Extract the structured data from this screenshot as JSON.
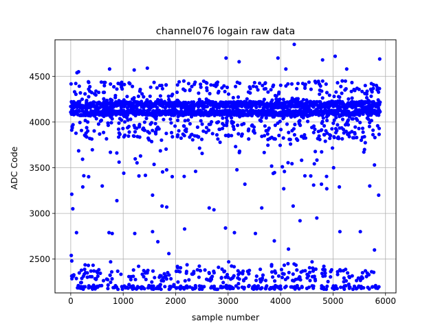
{
  "chart_data": {
    "type": "scatter",
    "title": "channel076 logain raw data",
    "xlabel": "sample number",
    "ylabel": "ADC Code",
    "xlim": [
      -300,
      6200
    ],
    "ylim": [
      2130,
      4900
    ],
    "xticks": [
      0,
      1000,
      2000,
      3000,
      4000,
      5000,
      6000
    ],
    "xtick_labels": [
      "0",
      "1000",
      "2000",
      "3000",
      "4000",
      "5000",
      "6000"
    ],
    "yticks": [
      2500,
      3000,
      3500,
      4000,
      4500
    ],
    "ytick_labels": [
      "2500",
      "3000",
      "3500",
      "4000",
      "4500"
    ],
    "grid": true,
    "marker_color": "#0000ff",
    "x_range": [
      0,
      5900
    ],
    "series": [
      {
        "name": "",
        "approx_point_count": 5900,
        "dense_bands": [
          {
            "y_center": 4190,
            "y_spread": 35
          },
          {
            "y_center": 4100,
            "y_spread": 30
          }
        ],
        "low_cluster": {
          "y_min": 2170,
          "y_max": 2450
        },
        "sample_points": [
          [
            120,
            4540
          ],
          [
            150,
            4550
          ],
          [
            740,
            4580
          ],
          [
            1210,
            4570
          ],
          [
            1460,
            4590
          ],
          [
            2960,
            4700
          ],
          [
            3210,
            4660
          ],
          [
            4260,
            4850
          ],
          [
            4800,
            4680
          ],
          [
            5040,
            4720
          ],
          [
            5260,
            4580
          ],
          [
            5890,
            4690
          ],
          [
            3950,
            4700
          ],
          [
            4100,
            4580
          ],
          [
            20,
            3210
          ],
          [
            40,
            3050
          ],
          [
            230,
            3290
          ],
          [
            600,
            3300
          ],
          [
            880,
            3140
          ],
          [
            1010,
            3440
          ],
          [
            1300,
            3410
          ],
          [
            1560,
            3200
          ],
          [
            1740,
            3080
          ],
          [
            1830,
            3070
          ],
          [
            2380,
            3460
          ],
          [
            2640,
            3060
          ],
          [
            2730,
            3040
          ],
          [
            3320,
            3320
          ],
          [
            3640,
            3060
          ],
          [
            4060,
            3270
          ],
          [
            4240,
            3080
          ],
          [
            4630,
            3310
          ],
          [
            4780,
            3320
          ],
          [
            4880,
            3270
          ],
          [
            5010,
            3500
          ],
          [
            5120,
            3290
          ],
          [
            5700,
            3300
          ],
          [
            5790,
            3530
          ],
          [
            5870,
            3200
          ],
          [
            110,
            2790
          ],
          [
            730,
            2790
          ],
          [
            790,
            2780
          ],
          [
            1220,
            2780
          ],
          [
            1560,
            2800
          ],
          [
            1660,
            2690
          ],
          [
            1870,
            2560
          ],
          [
            2170,
            2830
          ],
          [
            2950,
            2840
          ],
          [
            3120,
            2790
          ],
          [
            3520,
            2780
          ],
          [
            3880,
            2700
          ],
          [
            4150,
            2610
          ],
          [
            4370,
            2920
          ],
          [
            4690,
            2950
          ],
          [
            5130,
            2800
          ],
          [
            5520,
            2800
          ],
          [
            5790,
            2600
          ],
          [
            10,
            2540
          ],
          [
            20,
            2480
          ],
          [
            760,
            2470
          ],
          [
            3010,
            2470
          ],
          [
            4600,
            2470
          ],
          [
            200,
            2180
          ],
          [
            900,
            2170
          ],
          [
            1500,
            2190
          ],
          [
            2200,
            2200
          ],
          [
            2800,
            2170
          ],
          [
            3400,
            2210
          ],
          [
            3950,
            2190
          ],
          [
            4500,
            2180
          ],
          [
            5200,
            2190
          ],
          [
            5850,
            2180
          ]
        ]
      }
    ]
  }
}
